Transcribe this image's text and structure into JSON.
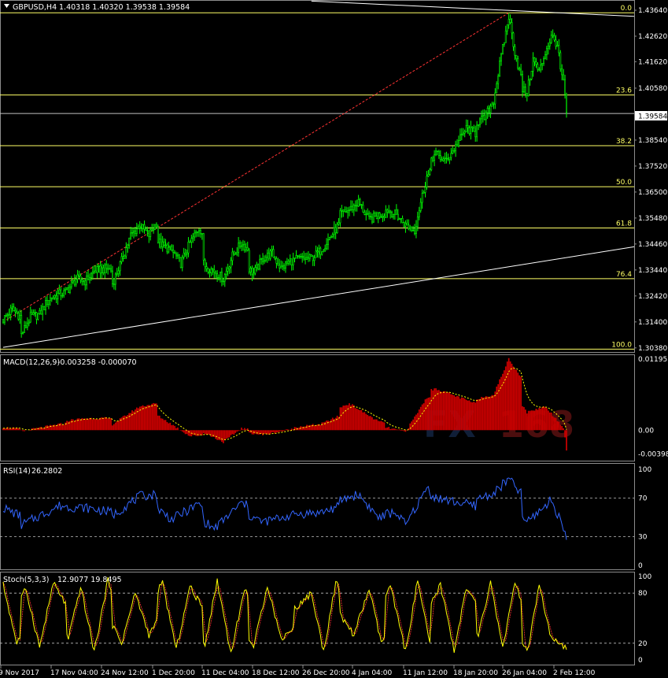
{
  "symbol_title": "GBPUSD,H4",
  "ohlc_readout": "1.40318 1.40320 1.39538 1.39584",
  "current_price_label": "1.39584",
  "colors": {
    "background": "#000000",
    "bull_candle": "#00ff00",
    "fib_line": "#ffff66",
    "macd_hist": "#cc0000",
    "macd_signal": "#ffff00",
    "rsi_line": "#3366ff",
    "stoch_main": "#ffff00",
    "stoch_signal": "#ff3333",
    "watermark": "#1e3a66",
    "watermark_accent": "#8b1a1a",
    "trendline_red": "#ff3333",
    "trendline_white": "#ffffff"
  },
  "watermark": {
    "part1": "FX",
    "part2": "168"
  },
  "date_axis": [
    "9 Nov 2017",
    "17 Nov 04:00",
    "24 Nov 12:00",
    "1 Dec 20:00",
    "11 Dec 04:00",
    "18 Dec 12:00",
    "26 Dec 20:00",
    "4 Jan 04:00",
    "11 Jan 12:00",
    "18 Jan 20:00",
    "26 Jan 04:00",
    "2 Feb 12:00"
  ],
  "chart_data": [
    {
      "type": "candlestick",
      "title": "GBPUSD,H4",
      "y_ticks": [
        "1.43640",
        "1.42620",
        "1.41620",
        "1.40580",
        "1.39584",
        "1.38540",
        "1.37520",
        "1.36500",
        "1.35480",
        "1.34460",
        "1.33440",
        "1.32420",
        "1.31400",
        "1.30380"
      ],
      "ylim": [
        1.3025,
        1.4398
      ],
      "fib_levels": [
        {
          "label": "0.0",
          "price": 1.4354
        },
        {
          "label": "23.6",
          "price": 1.4031
        },
        {
          "label": "38.2",
          "price": 1.3832
        },
        {
          "label": "50.0",
          "price": 1.3671
        },
        {
          "label": "61.8",
          "price": 1.3509
        },
        {
          "label": "76.4",
          "price": 1.331
        },
        {
          "label": "100.0",
          "price": 1.3033
        }
      ],
      "close_waypoints": [
        {
          "date": "2017-11-09 00:00",
          "close": 1.315
        },
        {
          "date": "2017-11-10 00:00",
          "close": 1.319
        },
        {
          "date": "2017-11-13 00:00",
          "close": 1.309
        },
        {
          "date": "2017-11-14 00:00",
          "close": 1.316
        },
        {
          "date": "2017-11-15 00:00",
          "close": 1.317
        },
        {
          "date": "2017-11-16 00:00",
          "close": 1.323
        },
        {
          "date": "2017-11-17 04:00",
          "close": 1.325
        },
        {
          "date": "2017-11-20 04:00",
          "close": 1.327
        },
        {
          "date": "2017-11-21 00:00",
          "close": 1.331
        },
        {
          "date": "2017-11-22 00:00",
          "close": 1.33
        },
        {
          "date": "2017-11-23 00:00",
          "close": 1.334
        },
        {
          "date": "2017-11-24 12:00",
          "close": 1.335
        },
        {
          "date": "2017-11-27 00:00",
          "close": 1.329
        },
        {
          "date": "2017-11-28 00:00",
          "close": 1.338
        },
        {
          "date": "2017-11-29 00:00",
          "close": 1.348
        },
        {
          "date": "2017-11-30 00:00",
          "close": 1.352
        },
        {
          "date": "2017-12-01 00:00",
          "close": 1.348
        },
        {
          "date": "2017-12-01 20:00",
          "close": 1.353
        },
        {
          "date": "2017-12-04 12:00",
          "close": 1.344
        },
        {
          "date": "2017-12-05 12:00",
          "close": 1.342
        },
        {
          "date": "2017-12-06 12:00",
          "close": 1.337
        },
        {
          "date": "2017-12-07 12:00",
          "close": 1.345
        },
        {
          "date": "2017-12-08 12:00",
          "close": 1.351
        },
        {
          "date": "2017-12-11 04:00",
          "close": 1.336
        },
        {
          "date": "2017-12-12 04:00",
          "close": 1.334
        },
        {
          "date": "2017-12-13 04:00",
          "close": 1.331
        },
        {
          "date": "2017-12-14 04:00",
          "close": 1.34
        },
        {
          "date": "2017-12-15 04:00",
          "close": 1.345
        },
        {
          "date": "2017-12-18 12:00",
          "close": 1.333
        },
        {
          "date": "2017-12-19 12:00",
          "close": 1.339
        },
        {
          "date": "2017-12-20 12:00",
          "close": 1.341
        },
        {
          "date": "2017-12-21 12:00",
          "close": 1.335
        },
        {
          "date": "2017-12-22 12:00",
          "close": 1.338
        },
        {
          "date": "2017-12-26 20:00",
          "close": 1.339
        },
        {
          "date": "2017-12-27 20:00",
          "close": 1.342
        },
        {
          "date": "2017-12-28 20:00",
          "close": 1.347
        },
        {
          "date": "2017-12-29 20:00",
          "close": 1.352
        },
        {
          "date": "2018-01-02 00:00",
          "close": 1.358
        },
        {
          "date": "2018-01-03 00:00",
          "close": 1.361
        },
        {
          "date": "2018-01-04 04:00",
          "close": 1.354
        },
        {
          "date": "2018-01-05 04:00",
          "close": 1.356
        },
        {
          "date": "2018-01-08 04:00",
          "close": 1.358
        },
        {
          "date": "2018-01-09 04:00",
          "close": 1.356
        },
        {
          "date": "2018-01-10 04:00",
          "close": 1.352
        },
        {
          "date": "2018-01-11 04:00",
          "close": 1.35
        },
        {
          "date": "2018-01-11 12:00",
          "close": 1.356
        },
        {
          "date": "2018-01-12 12:00",
          "close": 1.371
        },
        {
          "date": "2018-01-15 12:00",
          "close": 1.38
        },
        {
          "date": "2018-01-16 12:00",
          "close": 1.377
        },
        {
          "date": "2018-01-17 12:00",
          "close": 1.382
        },
        {
          "date": "2018-01-18 20:00",
          "close": 1.39
        },
        {
          "date": "2018-01-19 20:00",
          "close": 1.388
        },
        {
          "date": "2018-01-22 20:00",
          "close": 1.394
        },
        {
          "date": "2018-01-23 20:00",
          "close": 1.401
        },
        {
          "date": "2018-01-24 12:00",
          "close": 1.415
        },
        {
          "date": "2018-01-25 12:00",
          "close": 1.434
        },
        {
          "date": "2018-01-26 04:00",
          "close": 1.42
        },
        {
          "date": "2018-01-26 20:00",
          "close": 1.41
        },
        {
          "date": "2018-01-29 12:00",
          "close": 1.404
        },
        {
          "date": "2018-01-30 04:00",
          "close": 1.417
        },
        {
          "date": "2018-01-30 20:00",
          "close": 1.412
        },
        {
          "date": "2018-01-31 12:00",
          "close": 1.42
        },
        {
          "date": "2018-02-01 04:00",
          "close": 1.426
        },
        {
          "date": "2018-02-01 20:00",
          "close": 1.423
        },
        {
          "date": "2018-02-02 04:00",
          "close": 1.413
        },
        {
          "date": "2018-02-02 12:00",
          "close": 1.408
        },
        {
          "date": "2018-02-02 20:00",
          "close": 1.3958
        }
      ],
      "trendlines": [
        {
          "name": "red-dashed-support",
          "from": {
            "date": "2017-11-09 00:00",
            "price": 1.314
          },
          "to": {
            "date": "2018-01-25 12:00",
            "price": 1.4354
          }
        },
        {
          "name": "upper-resistance",
          "from": {
            "date": "2017-12-26 20:00",
            "price": 1.44
          },
          "to": {
            "date": "2018-02-05 00:00",
            "price": 1.434
          }
        },
        {
          "name": "lower-support",
          "from": {
            "date": "2017-11-09 00:00",
            "price": 1.304
          },
          "to": {
            "date": "2018-02-05 00:00",
            "price": 1.3435
          }
        }
      ]
    },
    {
      "type": "line",
      "title": "MACD(12,26,9)",
      "readout": "-0.003258 -0.000070",
      "y_ticks": [
        "0.011953",
        "0.00",
        "-0.003982"
      ],
      "ylim": [
        -0.005,
        0.0125
      ],
      "histogram_waypoints": [
        {
          "date": "2017-11-09 00:00",
          "v": 0.0005
        },
        {
          "date": "2017-11-13 00:00",
          "v": -0.0002
        },
        {
          "date": "2017-11-17 04:00",
          "v": 0.001
        },
        {
          "date": "2017-11-22 00:00",
          "v": 0.002
        },
        {
          "date": "2017-11-24 12:00",
          "v": 0.002
        },
        {
          "date": "2017-11-27 00:00",
          "v": 0.001
        },
        {
          "date": "2017-11-30 00:00",
          "v": 0.004
        },
        {
          "date": "2017-12-01 20:00",
          "v": 0.0045
        },
        {
          "date": "2017-12-05 12:00",
          "v": 0.001
        },
        {
          "date": "2017-12-07 12:00",
          "v": -0.001
        },
        {
          "date": "2017-12-11 04:00",
          "v": -0.0005
        },
        {
          "date": "2017-12-13 04:00",
          "v": -0.002
        },
        {
          "date": "2017-12-15 04:00",
          "v": 0.0003
        },
        {
          "date": "2017-12-19 12:00",
          "v": -0.0008
        },
        {
          "date": "2017-12-22 12:00",
          "v": 0.0001
        },
        {
          "date": "2017-12-27 20:00",
          "v": 0.001
        },
        {
          "date": "2018-01-02 00:00",
          "v": 0.0045
        },
        {
          "date": "2018-01-05 04:00",
          "v": 0.0015
        },
        {
          "date": "2018-01-10 04:00",
          "v": -0.0003
        },
        {
          "date": "2018-01-12 12:00",
          "v": 0.0055
        },
        {
          "date": "2018-01-15 12:00",
          "v": 0.007
        },
        {
          "date": "2018-01-19 20:00",
          "v": 0.0045
        },
        {
          "date": "2018-01-23 20:00",
          "v": 0.006
        },
        {
          "date": "2018-01-25 12:00",
          "v": 0.012
        },
        {
          "date": "2018-01-29 12:00",
          "v": 0.003
        },
        {
          "date": "2018-01-31 12:00",
          "v": 0.004
        },
        {
          "date": "2018-02-02 12:00",
          "v": 0.0005
        },
        {
          "date": "2018-02-02 20:00",
          "v": -0.0033
        }
      ]
    },
    {
      "type": "line",
      "title": "RSI(14)",
      "readout": "26.2802",
      "y_ticks": [
        "100",
        "70",
        "30",
        "0"
      ],
      "ylim": [
        0,
        100
      ],
      "levels": [
        70,
        30
      ],
      "waypoints": [
        {
          "date": "2017-11-09 00:00",
          "v": 60
        },
        {
          "date": "2017-11-13 00:00",
          "v": 42
        },
        {
          "date": "2017-11-17 04:00",
          "v": 62
        },
        {
          "date": "2017-11-22 00:00",
          "v": 60
        },
        {
          "date": "2017-11-27 00:00",
          "v": 52
        },
        {
          "date": "2017-11-30 00:00",
          "v": 72
        },
        {
          "date": "2017-12-01 20:00",
          "v": 74
        },
        {
          "date": "2017-12-05 12:00",
          "v": 48
        },
        {
          "date": "2017-12-08 12:00",
          "v": 64
        },
        {
          "date": "2017-12-12 04:00",
          "v": 38
        },
        {
          "date": "2017-12-15 04:00",
          "v": 65
        },
        {
          "date": "2017-12-19 12:00",
          "v": 45
        },
        {
          "date": "2017-12-22 12:00",
          "v": 52
        },
        {
          "date": "2017-12-27 20:00",
          "v": 55
        },
        {
          "date": "2018-01-03 00:00",
          "v": 74
        },
        {
          "date": "2018-01-05 04:00",
          "v": 50
        },
        {
          "date": "2018-01-09 04:00",
          "v": 55
        },
        {
          "date": "2018-01-10 04:00",
          "v": 42
        },
        {
          "date": "2018-01-12 12:00",
          "v": 80
        },
        {
          "date": "2018-01-16 12:00",
          "v": 68
        },
        {
          "date": "2018-01-19 20:00",
          "v": 62
        },
        {
          "date": "2018-01-23 20:00",
          "v": 75
        },
        {
          "date": "2018-01-25 12:00",
          "v": 90
        },
        {
          "date": "2018-01-29 12:00",
          "v": 45
        },
        {
          "date": "2018-02-01 04:00",
          "v": 68
        },
        {
          "date": "2018-02-02 12:00",
          "v": 40
        },
        {
          "date": "2018-02-02 20:00",
          "v": 26
        }
      ]
    },
    {
      "type": "line",
      "title": "Stoch(5,3,3)",
      "readout": "12.9077 19.8495",
      "y_ticks": [
        "100",
        "80",
        "20",
        "0"
      ],
      "ylim": [
        0,
        100
      ],
      "levels": [
        80,
        20
      ],
      "swing_dates": [
        "2017-11-09 00:00",
        "2017-11-10 12:00",
        "2017-11-13 12:00",
        "2017-11-15 00:00",
        "2017-11-16 12:00",
        "2017-11-20 04:00",
        "2017-11-21 12:00",
        "2017-11-23 00:00",
        "2017-11-24 12:00",
        "2017-11-28 00:00",
        "2017-11-29 12:00",
        "2017-12-01 00:00",
        "2017-12-04 12:00",
        "2017-12-06 00:00",
        "2017-12-07 12:00",
        "2017-12-11 04:00",
        "2017-12-12 12:00",
        "2017-12-14 00:00",
        "2017-12-15 12:00",
        "2017-12-18 12:00",
        "2017-12-20 00:00",
        "2017-12-21 12:00",
        "2017-12-26 20:00",
        "2017-12-28 04:00",
        "2017-12-29 12:00",
        "2018-01-02 12:00",
        "2018-01-04 04:00",
        "2018-01-05 12:00",
        "2018-01-08 12:00",
        "2018-01-10 04:00",
        "2018-01-11 12:00",
        "2018-01-12 20:00",
        "2018-01-16 00:00",
        "2018-01-17 12:00",
        "2018-01-18 20:00",
        "2018-01-22 04:00",
        "2018-01-23 12:00",
        "2018-01-24 20:00",
        "2018-01-26 04:00",
        "2018-01-29 12:00",
        "2018-01-30 20:00",
        "2018-02-01 04:00",
        "2018-02-02 12:00",
        "2018-02-02 20:00"
      ],
      "swing_values": [
        90,
        20,
        85,
        15,
        92,
        25,
        88,
        10,
        95,
        20,
        80,
        30,
        92,
        12,
        88,
        20,
        95,
        8,
        85,
        15,
        90,
        25,
        80,
        10,
        92,
        30,
        85,
        20,
        88,
        10,
        95,
        18,
        90,
        12,
        85,
        30,
        92,
        15,
        90,
        8,
        88,
        25,
        15,
        13
      ]
    }
  ]
}
